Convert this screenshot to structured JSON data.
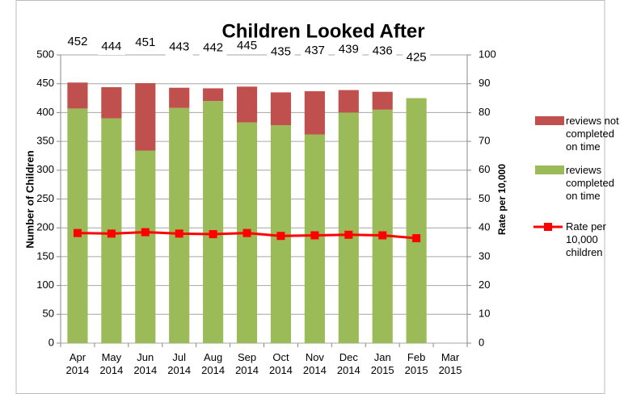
{
  "chart_data": {
    "type": "bar",
    "title": "Children Looked After",
    "categories": [
      "Apr 2014",
      "May 2014",
      "Jun 2014",
      "Jul 2014",
      "Aug 2014",
      "Sep 2014",
      "Oct 2014",
      "Nov 2014",
      "Dec 2014",
      "Jan 2015",
      "Feb 2015",
      "Mar 2015"
    ],
    "series": [
      {
        "name": "reviews not completed on time",
        "color": "#c0504d",
        "values": [
          45,
          54,
          117,
          35,
          22,
          62,
          57,
          75,
          39,
          31,
          0,
          null
        ]
      },
      {
        "name": "reviews completed on time",
        "color": "#9bbb59",
        "values": [
          407,
          390,
          334,
          408,
          420,
          383,
          378,
          362,
          400,
          405,
          425,
          null
        ]
      },
      {
        "name": "Rate per 10,000 children",
        "color": "#ff0000",
        "type": "line",
        "axis": "y2",
        "values": [
          38.2,
          38,
          38.5,
          38,
          37.8,
          38.2,
          37.2,
          37.4,
          37.6,
          37.4,
          36.4,
          null
        ]
      }
    ],
    "data_labels": [
      452,
      444,
      451,
      443,
      442,
      445,
      435,
      437,
      439,
      436,
      425,
      null
    ],
    "ylabel": "Number of Children",
    "y2label": "Rate per 10,000",
    "ylim": [
      0,
      500
    ],
    "yticks": [
      0,
      50,
      100,
      150,
      200,
      250,
      300,
      350,
      400,
      450,
      500
    ],
    "y2lim": [
      0,
      100
    ],
    "y2ticks": [
      0,
      10,
      20,
      30,
      40,
      50,
      60,
      70,
      80,
      90,
      100
    ],
    "grid": true
  }
}
